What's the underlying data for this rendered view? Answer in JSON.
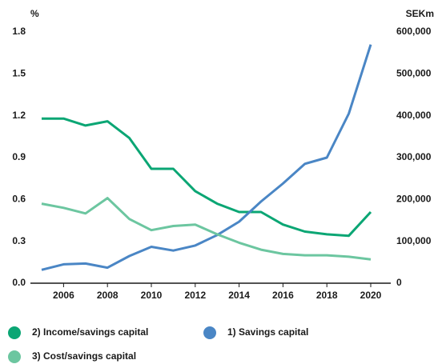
{
  "chart_data": {
    "type": "line",
    "y_label": "%",
    "y2_label": "SEKm",
    "x": [
      2005,
      2006,
      2007,
      2008,
      2009,
      2010,
      2011,
      2012,
      2013,
      2014,
      2015,
      2016,
      2017,
      2018,
      2019,
      2020
    ],
    "xlim": [
      2005,
      2020
    ],
    "xticks": [
      2006,
      2008,
      2010,
      2012,
      2014,
      2016,
      2018,
      2020
    ],
    "ylim": [
      0,
      1.8
    ],
    "yticks": [
      {
        "value": 0,
        "label": "0.0"
      },
      0.3,
      0.6,
      0.9,
      1.2,
      1.5,
      1.8
    ],
    "y2lim": [
      0,
      600000
    ],
    "y2ticks": [
      0,
      {
        "value": 100000,
        "label": "100,000"
      },
      {
        "value": 200000,
        "label": "200,000"
      },
      {
        "value": 300000,
        "label": "300,000"
      },
      {
        "value": 400000,
        "label": "400,000"
      },
      {
        "value": 500000,
        "label": "500,000"
      },
      {
        "value": 600000,
        "label": "600,000"
      }
    ],
    "series": [
      {
        "name": "2) Income/savings capital",
        "color": "#0ba674",
        "values": [
          1.18,
          1.18,
          1.13,
          1.16,
          1.04,
          0.82,
          0.82,
          0.66,
          0.57,
          0.51,
          0.51,
          0.42,
          0.37,
          0.35,
          0.34,
          0.51
        ]
      },
      {
        "name": "1) Savings capital",
        "color": "#4a86c5",
        "axis": "y2",
        "values": [
          32000,
          45000,
          47000,
          37000,
          65000,
          87000,
          78000,
          90000,
          115000,
          147000,
          195000,
          238000,
          285000,
          300000,
          405000,
          570000
        ]
      },
      {
        "name": "3) Cost/savings capital",
        "color": "#6cc6a0",
        "values": [
          0.57,
          0.54,
          0.5,
          0.61,
          0.46,
          0.38,
          0.41,
          0.42,
          0.35,
          0.29,
          0.24,
          0.21,
          0.2,
          0.2,
          0.19,
          0.17
        ]
      }
    ]
  }
}
